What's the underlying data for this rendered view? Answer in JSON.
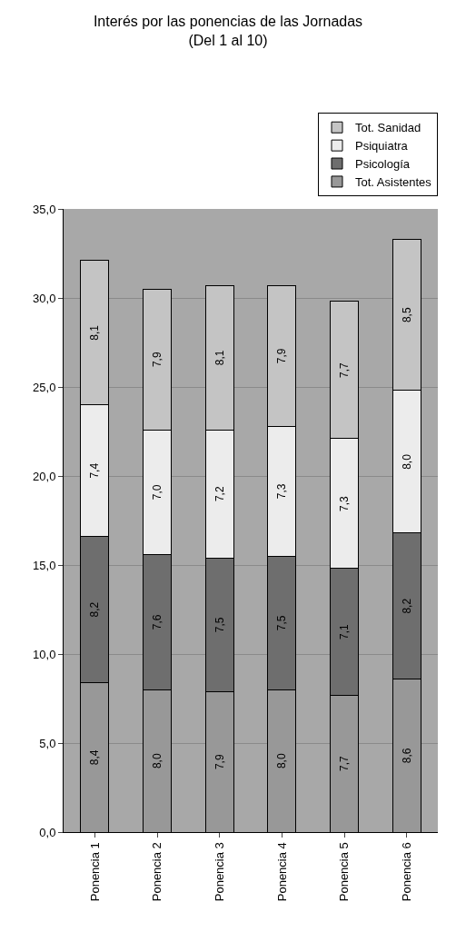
{
  "chart_data": {
    "type": "bar",
    "title": "Interés por las ponencias de las Jornadas\n(Del 1 al 10)",
    "stacked": true,
    "categories": [
      "Ponencia 1",
      "Ponencia 2",
      "Ponencia 3",
      "Ponencia 4",
      "Ponencia 5",
      "Ponencia 6"
    ],
    "series": [
      {
        "name": "Tot. Asistentes",
        "color": "#989898",
        "values": [
          8.4,
          8.0,
          7.9,
          8.0,
          7.7,
          8.6
        ],
        "value_labels": [
          "8,4",
          "8,0",
          "7,9",
          "8,0",
          "7,7",
          "8,6"
        ]
      },
      {
        "name": "Psicología",
        "color": "#6e6e6e",
        "values": [
          8.2,
          7.6,
          7.5,
          7.5,
          7.1,
          8.2
        ],
        "value_labels": [
          "8,2",
          "7,6",
          "7,5",
          "7,5",
          "7,1",
          "8,2"
        ]
      },
      {
        "name": "Psiquiatra",
        "color": "#ececec",
        "values": [
          7.4,
          7.0,
          7.2,
          7.3,
          7.3,
          8.0
        ],
        "value_labels": [
          "7,4",
          "7,0",
          "7,2",
          "7,3",
          "7,3",
          "8,0"
        ]
      },
      {
        "name": "Tot. Sanidad",
        "color": "#c4c4c4",
        "values": [
          8.1,
          7.9,
          8.1,
          7.9,
          7.7,
          8.5
        ],
        "value_labels": [
          "8,1",
          "7,9",
          "8,1",
          "7,9",
          "7,7",
          "8,5"
        ]
      }
    ],
    "ylim": [
      0,
      35
    ],
    "yticks": [
      {
        "value": 0,
        "label": "0,0"
      },
      {
        "value": 5,
        "label": "5,0"
      },
      {
        "value": 10,
        "label": "10,0"
      },
      {
        "value": 15,
        "label": "15,0"
      },
      {
        "value": 20,
        "label": "20,0"
      },
      {
        "value": 25,
        "label": "25,0"
      },
      {
        "value": 30,
        "label": "30,0"
      },
      {
        "value": 35,
        "label": "35,0"
      }
    ],
    "grid": "y",
    "legend": "top right"
  }
}
